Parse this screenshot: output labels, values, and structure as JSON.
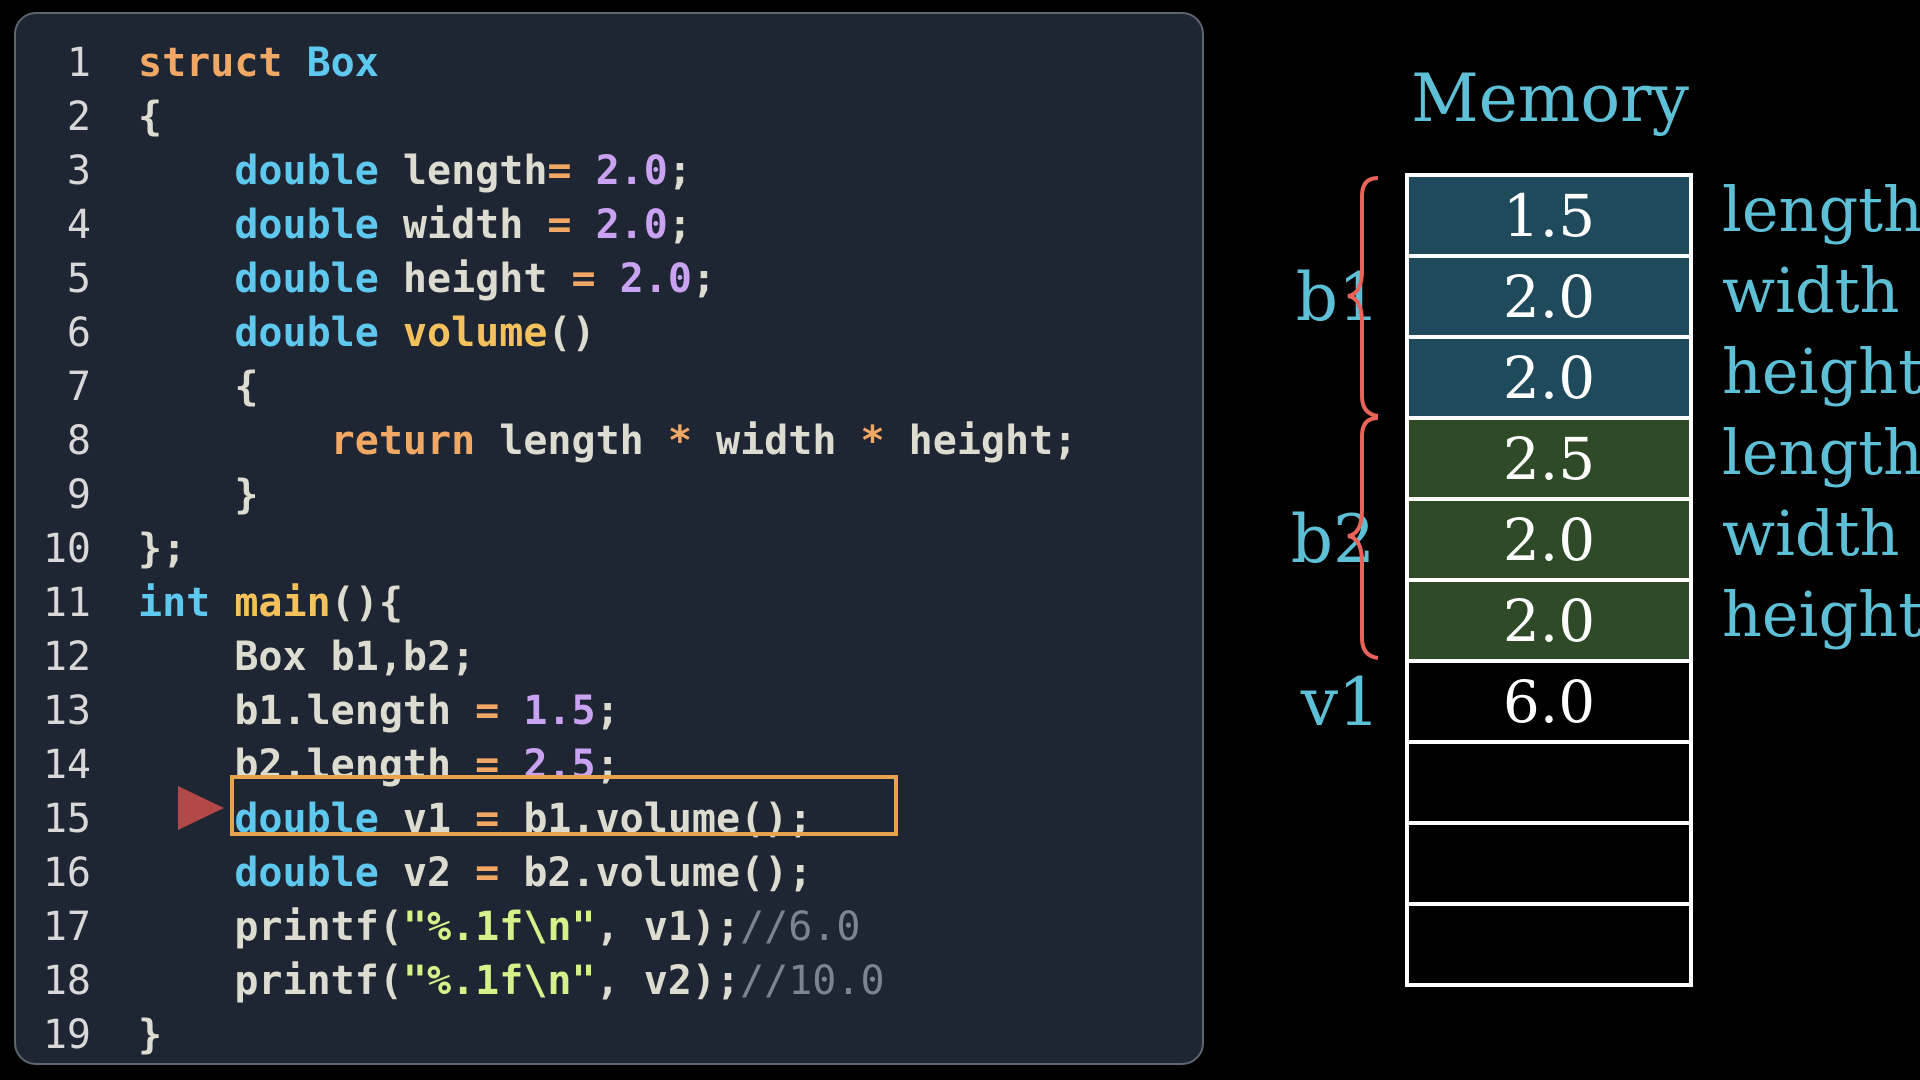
{
  "code": {
    "lines": [
      {
        "n": "1",
        "t": [
          [
            "kw",
            "struct "
          ],
          [
            "ty",
            "Box"
          ]
        ]
      },
      {
        "n": "2",
        "t": [
          [
            "tx",
            "{"
          ]
        ]
      },
      {
        "n": "3",
        "t": [
          [
            "tx",
            "    "
          ],
          [
            "ty",
            "double "
          ],
          [
            "tx",
            "length"
          ],
          [
            "op",
            "= "
          ],
          [
            "num",
            "2.0"
          ],
          [
            "tx",
            ";"
          ]
        ]
      },
      {
        "n": "4",
        "t": [
          [
            "tx",
            "    "
          ],
          [
            "ty",
            "double "
          ],
          [
            "tx",
            "width "
          ],
          [
            "op",
            "= "
          ],
          [
            "num",
            "2.0"
          ],
          [
            "tx",
            ";"
          ]
        ]
      },
      {
        "n": "5",
        "t": [
          [
            "tx",
            "    "
          ],
          [
            "ty",
            "double "
          ],
          [
            "tx",
            "height "
          ],
          [
            "op",
            "= "
          ],
          [
            "num",
            "2.0"
          ],
          [
            "tx",
            ";"
          ]
        ]
      },
      {
        "n": "6",
        "t": [
          [
            "tx",
            "    "
          ],
          [
            "ty",
            "double "
          ],
          [
            "fn",
            "volume"
          ],
          [
            "tx",
            "()"
          ]
        ]
      },
      {
        "n": "7",
        "t": [
          [
            "tx",
            "    {"
          ]
        ]
      },
      {
        "n": "8",
        "t": [
          [
            "tx",
            "        "
          ],
          [
            "kw",
            "return "
          ],
          [
            "tx",
            "length "
          ],
          [
            "op",
            "* "
          ],
          [
            "tx",
            "width "
          ],
          [
            "op",
            "* "
          ],
          [
            "tx",
            "height;"
          ]
        ]
      },
      {
        "n": "9",
        "t": [
          [
            "tx",
            "    }"
          ]
        ]
      },
      {
        "n": "10",
        "t": [
          [
            "tx",
            "};"
          ]
        ]
      },
      {
        "n": "11",
        "t": [
          [
            "ty",
            "int "
          ],
          [
            "fn",
            "main"
          ],
          [
            "tx",
            "(){"
          ]
        ]
      },
      {
        "n": "12",
        "t": [
          [
            "tx",
            "    Box b1,b2;"
          ]
        ]
      },
      {
        "n": "13",
        "t": [
          [
            "tx",
            "    b1.length "
          ],
          [
            "op",
            "= "
          ],
          [
            "num",
            "1.5"
          ],
          [
            "tx",
            ";"
          ]
        ]
      },
      {
        "n": "14",
        "t": [
          [
            "tx",
            "    b2.length "
          ],
          [
            "op",
            "= "
          ],
          [
            "num",
            "2.5"
          ],
          [
            "tx",
            ";"
          ]
        ]
      },
      {
        "n": "15",
        "t": [
          [
            "tx",
            "    "
          ],
          [
            "ty",
            "double "
          ],
          [
            "tx",
            "v1 "
          ],
          [
            "op",
            "= "
          ],
          [
            "tx",
            "b1.volume();"
          ]
        ]
      },
      {
        "n": "16",
        "t": [
          [
            "tx",
            "    "
          ],
          [
            "ty",
            "double "
          ],
          [
            "tx",
            "v2 "
          ],
          [
            "op",
            "= "
          ],
          [
            "tx",
            "b2.volume();"
          ]
        ]
      },
      {
        "n": "17",
        "t": [
          [
            "tx",
            "    printf("
          ],
          [
            "str",
            "\"%.1f\\n\""
          ],
          [
            "tx",
            ", v1);"
          ],
          [
            "cm",
            "//6.0"
          ]
        ]
      },
      {
        "n": "18",
        "t": [
          [
            "tx",
            "    printf("
          ],
          [
            "str",
            "\"%.1f\\n\""
          ],
          [
            "tx",
            ", v2);"
          ],
          [
            "cm",
            "//10.0"
          ]
        ]
      },
      {
        "n": "19",
        "t": [
          [
            "tx",
            "}"
          ]
        ]
      }
    ],
    "current_line": "15"
  },
  "memory": {
    "title": "Memory",
    "cells": [
      {
        "value": "1.5",
        "color": "#1f4a5c"
      },
      {
        "value": "2.0",
        "color": "#1f4a5c"
      },
      {
        "value": "2.0",
        "color": "#1f4a5c"
      },
      {
        "value": "2.5",
        "color": "#2f4a26"
      },
      {
        "value": "2.0",
        "color": "#2f4a26"
      },
      {
        "value": "2.0",
        "color": "#2f4a26"
      },
      {
        "value": "6.0",
        "color": "#000000"
      },
      {
        "value": "",
        "color": "#000000"
      },
      {
        "value": "",
        "color": "#000000"
      },
      {
        "value": "",
        "color": "#000000"
      }
    ],
    "field_labels": [
      "length",
      "width",
      "height",
      "length",
      "width",
      "height"
    ],
    "var_labels": {
      "b1": "b1",
      "b2": "b2",
      "v1": "v1"
    }
  },
  "colors": {
    "brace": "#e8645a",
    "label": "#5ec0d6",
    "arrow": "#b34848",
    "highlight": "#e8a24e"
  }
}
